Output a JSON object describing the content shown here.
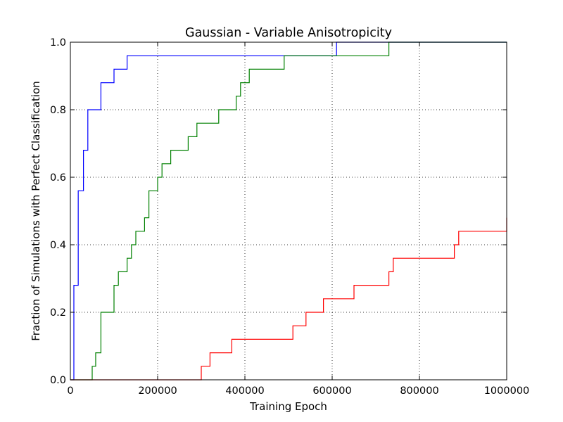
{
  "chart_data": {
    "type": "line",
    "title": "Gaussian - Variable Anisotropicity",
    "xlabel": "Training Epoch",
    "ylabel": "Fraction of Simulations with Perfect Classification",
    "xlim": [
      0,
      1000000
    ],
    "ylim": [
      0.0,
      1.0
    ],
    "grid": true,
    "x_ticks": [
      {
        "value": 0,
        "label": "0"
      },
      {
        "value": 200000,
        "label": "200000"
      },
      {
        "value": 400000,
        "label": "400000"
      },
      {
        "value": 600000,
        "label": "600000"
      },
      {
        "value": 800000,
        "label": "800000"
      },
      {
        "value": 1000000,
        "label": "1000000"
      }
    ],
    "y_ticks": [
      {
        "value": 0.0,
        "label": "0.0"
      },
      {
        "value": 0.2,
        "label": "0.2"
      },
      {
        "value": 0.4,
        "label": "0.4"
      },
      {
        "value": 0.6,
        "label": "0.6"
      },
      {
        "value": 0.8,
        "label": "0.8"
      },
      {
        "value": 1.0,
        "label": "1.0"
      }
    ],
    "series": [
      {
        "color": "#0000ff",
        "step": "post",
        "x": [
          0,
          8000,
          18000,
          30000,
          40000,
          70000,
          100000,
          130000,
          610000,
          1000000
        ],
        "y": [
          0.0,
          0.28,
          0.56,
          0.68,
          0.8,
          0.88,
          0.92,
          0.96,
          1.0,
          1.0
        ]
      },
      {
        "color": "#008000",
        "step": "post",
        "x": [
          0,
          50000,
          58000,
          70000,
          100000,
          110000,
          130000,
          140000,
          150000,
          170000,
          180000,
          200000,
          210000,
          230000,
          270000,
          290000,
          340000,
          380000,
          390000,
          410000,
          490000,
          730000,
          1000000
        ],
        "y": [
          0.0,
          0.04,
          0.08,
          0.2,
          0.28,
          0.32,
          0.36,
          0.4,
          0.44,
          0.48,
          0.56,
          0.6,
          0.64,
          0.68,
          0.72,
          0.76,
          0.8,
          0.84,
          0.88,
          0.92,
          0.96,
          1.0,
          1.0
        ]
      },
      {
        "color": "#ff0000",
        "step": "post",
        "x": [
          0,
          300000,
          320000,
          370000,
          510000,
          540000,
          580000,
          650000,
          730000,
          740000,
          880000,
          890000,
          1000000
        ],
        "y": [
          0.0,
          0.04,
          0.08,
          0.12,
          0.16,
          0.2,
          0.24,
          0.28,
          0.32,
          0.36,
          0.4,
          0.44,
          0.48
        ]
      }
    ]
  }
}
